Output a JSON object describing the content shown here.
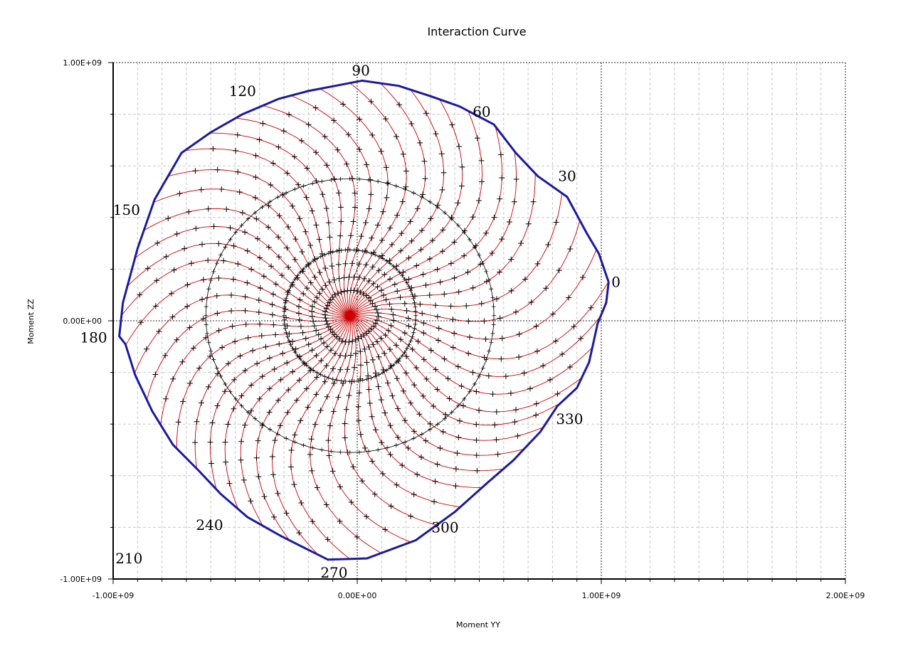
{
  "chart_data": {
    "type": "line",
    "title": "Interaction Curve",
    "xlabel": "Moment YY",
    "ylabel": "Moment ZZ",
    "xlim": [
      -1000000000,
      2000000000
    ],
    "ylim": [
      -1000000000,
      1000000000
    ],
    "x_tick_labels": [
      "-1.00E+09",
      "0.00E+00",
      "1.00E+09",
      "2.00E+09"
    ],
    "x_tick_values": [
      -1000000000,
      0,
      1000000000,
      2000000000
    ],
    "y_tick_labels": [
      "-1.00E+09",
      "0.00E+00",
      "1.00E+09"
    ],
    "y_tick_values": [
      -1000000000,
      0,
      1000000000
    ],
    "grid": true,
    "legend": "none",
    "center": [
      -30000000,
      20000000
    ],
    "colors": {
      "envelope": "#1a1aa0",
      "rays": "#cc0000",
      "markers": "#000000"
    },
    "angle_step_deg": 7.5,
    "steps_per_ray": 14,
    "twist_deg": 28,
    "envelope": {
      "name": "",
      "x": [
        1030000000,
        1020000000,
        985000000,
        950000000,
        900000000,
        820000000,
        750000000,
        640000000,
        530000000,
        400000000,
        240000000,
        40000000,
        -120000000,
        -310000000,
        -450000000,
        -560000000,
        -650000000,
        -755000000,
        -840000000,
        -910000000,
        -950000000,
        -975000000,
        -960000000,
        -900000000,
        -830000000,
        -720000000,
        -600000000,
        -470000000,
        -320000000,
        -200000000,
        -90000000,
        20000000,
        170000000,
        300000000,
        420000000,
        560000000,
        650000000,
        740000000,
        860000000,
        940000000,
        990000000,
        1030000000
      ],
      "y": [
        150000000,
        70000000,
        -10000000,
        -160000000,
        -260000000,
        -330000000,
        -430000000,
        -540000000,
        -630000000,
        -740000000,
        -850000000,
        -920000000,
        -925000000,
        -835000000,
        -760000000,
        -670000000,
        -580000000,
        -480000000,
        -350000000,
        -210000000,
        -90000000,
        -60000000,
        70000000,
        280000000,
        470000000,
        650000000,
        730000000,
        800000000,
        860000000,
        890000000,
        910000000,
        930000000,
        910000000,
        870000000,
        830000000,
        760000000,
        650000000,
        560000000,
        480000000,
        340000000,
        260000000,
        150000000
      ]
    },
    "inner_circles": [
      {
        "name": "",
        "radius_x": 270000000,
        "radius_y": 255000000
      },
      {
        "name": "",
        "radius_x": 590000000,
        "radius_y": 530000000
      }
    ],
    "angle_annotations": [
      {
        "text": "0",
        "x": 1060000000,
        "y": 150000000
      },
      {
        "text": "30",
        "x": 860000000,
        "y": 560000000
      },
      {
        "text": "60",
        "x": 510000000,
        "y": 810000000
      },
      {
        "text": "90",
        "x": 15000000,
        "y": 970000000
      },
      {
        "text": "120",
        "x": -470000000,
        "y": 890000000
      },
      {
        "text": "150",
        "x": -945000000,
        "y": 430000000
      },
      {
        "text": "180",
        "x": -1080000000,
        "y": -65000000
      },
      {
        "text": "210",
        "x": -935000000,
        "y": -920000000
      },
      {
        "text": "240",
        "x": -605000000,
        "y": -790000000
      },
      {
        "text": "270",
        "x": -95000000,
        "y": -975000000
      },
      {
        "text": "300",
        "x": 360000000,
        "y": -800000000
      },
      {
        "text": "330",
        "x": 870000000,
        "y": -380000000
      }
    ]
  }
}
